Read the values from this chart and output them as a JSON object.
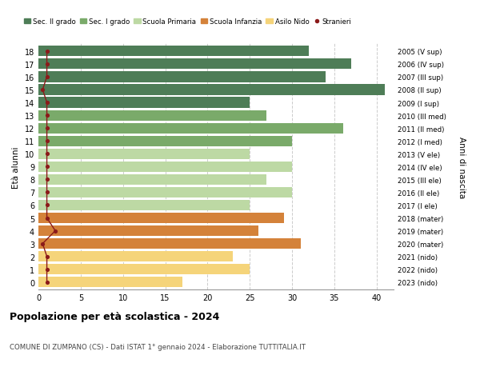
{
  "ages": [
    18,
    17,
    16,
    15,
    14,
    13,
    12,
    11,
    10,
    9,
    8,
    7,
    6,
    5,
    4,
    3,
    2,
    1,
    0
  ],
  "right_labels": [
    "2005 (V sup)",
    "2006 (IV sup)",
    "2007 (III sup)",
    "2008 (II sup)",
    "2009 (I sup)",
    "2010 (III med)",
    "2011 (II med)",
    "2012 (I med)",
    "2013 (V ele)",
    "2014 (IV ele)",
    "2015 (III ele)",
    "2016 (II ele)",
    "2017 (I ele)",
    "2018 (mater)",
    "2019 (mater)",
    "2020 (mater)",
    "2021 (nido)",
    "2022 (nido)",
    "2023 (nido)"
  ],
  "bar_values": [
    32,
    37,
    34,
    41,
    25,
    27,
    36,
    30,
    25,
    30,
    27,
    30,
    25,
    29,
    26,
    31,
    23,
    25,
    17
  ],
  "bar_colors": [
    "#4e7d57",
    "#4e7d57",
    "#4e7d57",
    "#4e7d57",
    "#4e7d57",
    "#7aaa6a",
    "#7aaa6a",
    "#7aaa6a",
    "#bdd9a4",
    "#bdd9a4",
    "#bdd9a4",
    "#bdd9a4",
    "#bdd9a4",
    "#d4823a",
    "#d4823a",
    "#d4823a",
    "#f5d47a",
    "#f5d47a",
    "#f5d47a"
  ],
  "stranieri_values": [
    1,
    1,
    1,
    0,
    1,
    1,
    1,
    1,
    1,
    1,
    1,
    1,
    1,
    1,
    2,
    0,
    1,
    1,
    1
  ],
  "stranieri_color": "#8b1a1a",
  "legend_items": [
    {
      "label": "Sec. II grado",
      "color": "#4e7d57"
    },
    {
      "label": "Sec. I grado",
      "color": "#7aaa6a"
    },
    {
      "label": "Scuola Primaria",
      "color": "#bdd9a4"
    },
    {
      "label": "Scuola Infanzia",
      "color": "#d4823a"
    },
    {
      "label": "Asilo Nido",
      "color": "#f5d47a"
    },
    {
      "label": "Stranieri",
      "color": "#8b1a1a"
    }
  ],
  "ylabel": "Età alunni",
  "right_ylabel": "Anni di nascita",
  "title": "Popolazione per età scolastica - 2024",
  "subtitle": "COMUNE DI ZUMPANO (CS) - Dati ISTAT 1° gennaio 2024 - Elaborazione TUTTITALIA.IT",
  "xlim": [
    0,
    42
  ],
  "xticks": [
    0,
    5,
    10,
    15,
    20,
    25,
    30,
    35,
    40
  ],
  "background_color": "#ffffff",
  "grid_color": "#cccccc"
}
